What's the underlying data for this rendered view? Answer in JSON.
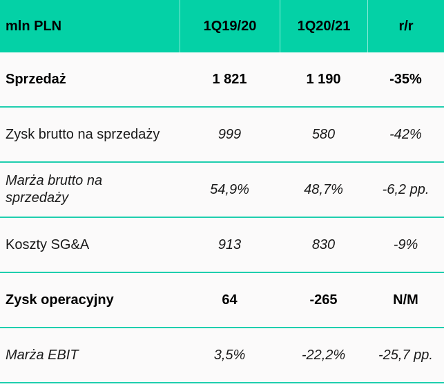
{
  "table": {
    "unit_label": "mln PLN",
    "columns": [
      "1Q19/20",
      "1Q20/21",
      "r/r"
    ],
    "rows": [
      {
        "label": "Sprzedaż",
        "style": "bold",
        "values": [
          "1 821",
          "1 190",
          "-35%"
        ]
      },
      {
        "label": "Zysk brutto na sprzedaży",
        "style": "regular",
        "values": [
          "999",
          "580",
          "-42%"
        ]
      },
      {
        "label": "Marża brutto na\nsprzedaży",
        "style": "italic",
        "values": [
          "54,9%",
          "48,7%",
          "-6,2 pp."
        ]
      },
      {
        "label": "Koszty SG&A",
        "style": "regular",
        "values": [
          "913",
          "830",
          "-9%"
        ]
      },
      {
        "label": "Zysk operacyjny",
        "style": "bold",
        "values": [
          "64",
          "-265",
          "N/M"
        ]
      },
      {
        "label": "Marża EBIT",
        "style": "italic",
        "values": [
          "3,5%",
          "-22,2%",
          "-25,7 pp."
        ]
      }
    ]
  },
  "colors": {
    "accent_teal": "#04d1a6",
    "separator_teal": "#1fceae",
    "row_background": "#fbfafa",
    "text": "#1a1a1a",
    "header_text": "#000000"
  }
}
